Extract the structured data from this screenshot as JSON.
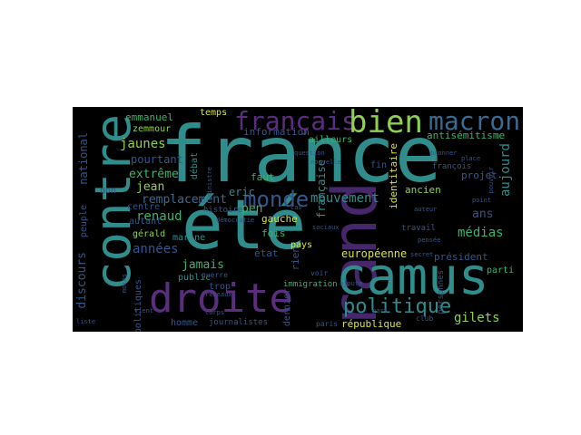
{
  "words": {
    "france": "france",
    "ete": "été",
    "grand": "grand",
    "contre": "contre",
    "camus": "camus",
    "droite": "droite",
    "francais": "français",
    "bien": "bien",
    "macron": "macron",
    "monde": "monde",
    "politique": "politique",
    "remplacement": "remplacement",
    "jaunes": "jaunes",
    "extreme": "extrême",
    "renaud": "renaud",
    "mouvement": "mouvement",
    "annees": "années",
    "jamais": "jamais",
    "eric": "eric",
    "pen": "pen",
    "jean": "jean",
    "gilets": "gilets",
    "medias": "médias",
    "europeenne": "européenne",
    "president": "président",
    "aujourd": "aujourd",
    "francaise": "française",
    "ans": "ans",
    "discours": "discours",
    "national": "national",
    "emmanuel": "emmanuel",
    "zemmour": "zemmour",
    "temps": "temps",
    "information": "information",
    "ailleurs": "ailleurs",
    "antisemitisme": "antisémitisme",
    "pourtant": "pourtant",
    "gerald": "gérald",
    "faut": "faut",
    "fin": "fin",
    "ancien": "ancien",
    "identitaire": "identitaire",
    "projet": "projet",
    "gauche": "gauche",
    "etat": "état",
    "fois": "fois",
    "rien": "rien",
    "pays": "pays",
    "parti": "parti",
    "marine": "marine",
    "public": "public",
    "centre": "centre",
    "autant": "autant",
    "homme": "homme",
    "republique": "république",
    "immigration": "immigration",
    "dernier": "dernier",
    "journalistes": "journalistes",
    "non": "non",
    "debat": "débat",
    "histoire": "histoire",
    "trop": "trop",
    "politiques": "politiques",
    "francois": "françois",
    "travail": "travail",
    "personnes": "personnes",
    "peuple": "peuple",
    "paris": "paris",
    "guerre": "guerre",
    "club": "club",
    "voir": "voir",
    "democratie": "démocratie",
    "reseaux": "réseaux",
    "liste": "liste",
    "corps": "corps",
    "place": "place",
    "pouvoir": "pouvoir",
    "point": "point",
    "question": "question",
    "nouvelle": "nouvelle",
    "sociaux": "sociaux",
    "secret": "secret",
    "pensee": "pensée",
    "auteur": "auteur",
    "part": "part",
    "ministre": "ministre",
    "moins": "moins",
    "cas": "cas",
    "bronner": "bronner",
    "vient": "vient",
    "ajoute": "ajoute"
  },
  "colors": {
    "teal": "#2f8d8c",
    "blue": "#3a6a91",
    "purple": "#46276b",
    "violet": "#5a2d7e",
    "green": "#3db26f",
    "lime": "#8fd14a",
    "yellow": "#d7e33c",
    "cyan": "#25a08a",
    "steel": "#34558b"
  }
}
